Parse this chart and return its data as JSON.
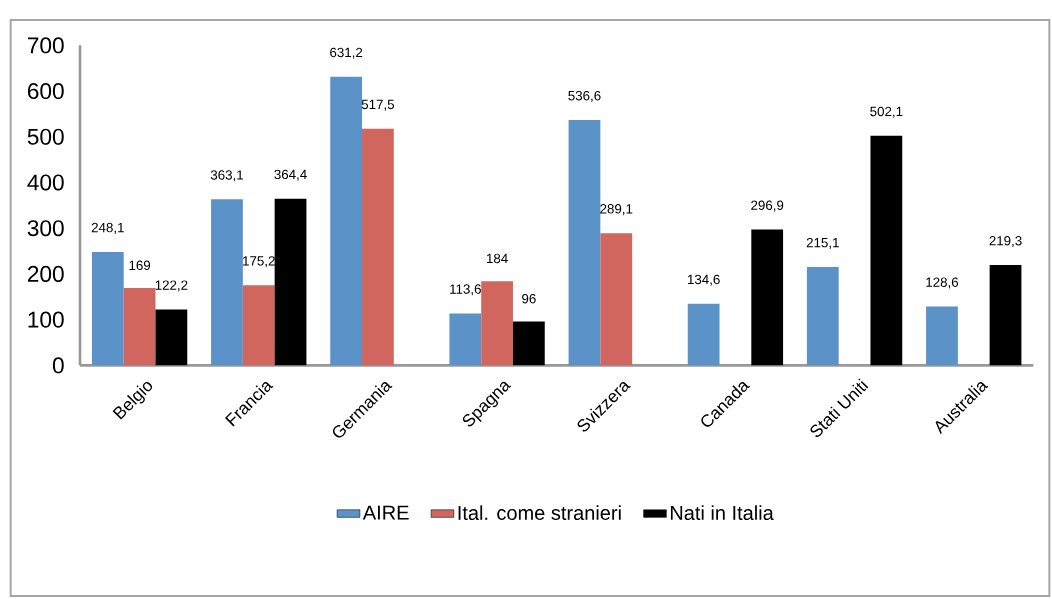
{
  "chart_data": {
    "type": "bar",
    "categories": [
      "Belgio",
      "Francia",
      "Germania",
      "Spagna",
      "Svizzera",
      "Canada",
      "Stati Uniti",
      "Australia"
    ],
    "series": [
      {
        "name": "AIRE",
        "color": "#5b93c8",
        "values": [
          248.1,
          363.1,
          631.2,
          113.6,
          536.6,
          134.6,
          215.1,
          128.6
        ],
        "value_labels": [
          "248,1",
          "363,1",
          "631,2",
          "113,6",
          "536,6",
          "134,6",
          "215,1",
          "128,6"
        ]
      },
      {
        "name": "Ital. come stranieri",
        "color": "#d1665f",
        "values": [
          169,
          175.2,
          517.5,
          184,
          289.1,
          null,
          null,
          null
        ],
        "value_labels": [
          "169",
          "175,2",
          "517,5",
          "184",
          "289,1",
          null,
          null,
          null
        ]
      },
      {
        "name": "Nati in Italia",
        "color": "#000000",
        "values": [
          122.2,
          364.4,
          null,
          96,
          null,
          296.9,
          502.1,
          219.3
        ],
        "value_labels": [
          "122,2",
          "364,4",
          null,
          "96",
          null,
          "296,9",
          "502,1",
          "219,3"
        ]
      }
    ],
    "ylim": [
      0,
      700
    ],
    "yticks": [
      0,
      100,
      200,
      300,
      400,
      500,
      600,
      700
    ],
    "grid": false,
    "legend": "bottom"
  }
}
